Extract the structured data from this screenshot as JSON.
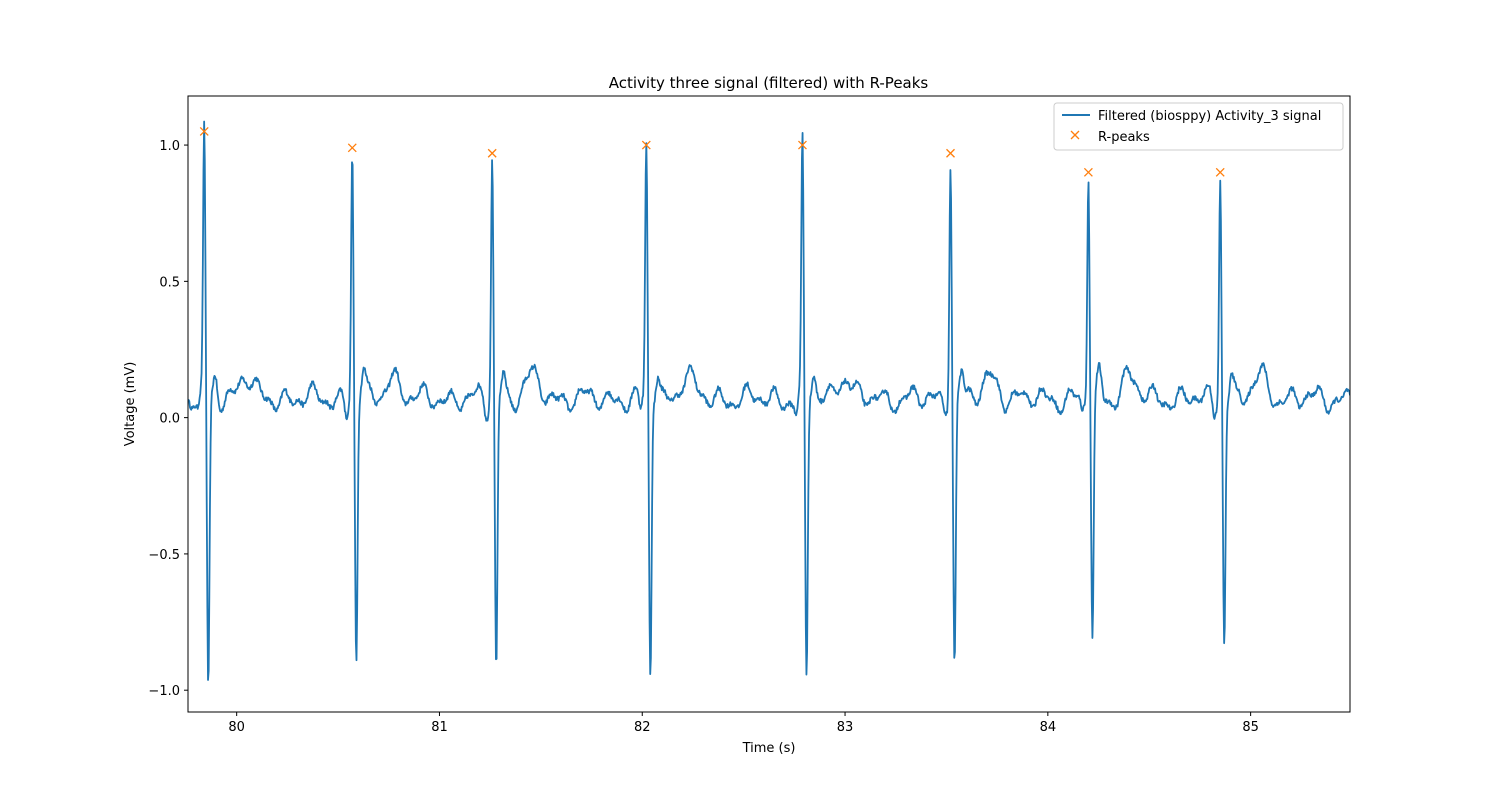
{
  "chart_data": {
    "type": "line",
    "title": "Activity three signal (filtered) with R-Peaks",
    "xlabel": "Time (s)",
    "ylabel": "Voltage (mV)",
    "xlim": [
      79.76,
      85.49
    ],
    "ylim": [
      -1.08,
      1.18
    ],
    "xticks": [
      80,
      81,
      82,
      83,
      84,
      85
    ],
    "xtick_labels": [
      "80",
      "81",
      "82",
      "83",
      "84",
      "85"
    ],
    "yticks": [
      -1.0,
      -0.5,
      0.0,
      0.5,
      1.0
    ],
    "ytick_labels": [
      "−1.0",
      "−0.5",
      "0.0",
      "0.5",
      "1.0"
    ],
    "grid": false,
    "legend_position": "top-right",
    "colors": {
      "signal": "#1f77b4",
      "peaks": "#ff7f0e"
    },
    "series": [
      {
        "name": "Filtered (biosppy) Activity_3 signal",
        "style": "line",
        "beat_times": [
          79.84,
          80.57,
          81.26,
          82.02,
          82.79,
          83.52,
          84.2,
          84.85
        ],
        "beat_peaks": [
          1.05,
          0.99,
          0.97,
          1.0,
          1.0,
          0.97,
          0.9,
          0.9
        ],
        "beat_troughs": [
          -1.0,
          -0.89,
          -0.92,
          -0.95,
          -0.97,
          -0.89,
          -0.81,
          -0.81
        ],
        "baseline": 0.07,
        "x_start": 79.76,
        "x_end": 85.49
      },
      {
        "name": "R-peaks",
        "style": "marker-x",
        "x": [
          79.84,
          80.57,
          81.26,
          82.02,
          82.79,
          83.52,
          84.2,
          84.85
        ],
        "y": [
          1.05,
          0.99,
          0.97,
          1.0,
          1.0,
          0.97,
          0.9,
          0.9
        ]
      }
    ]
  }
}
